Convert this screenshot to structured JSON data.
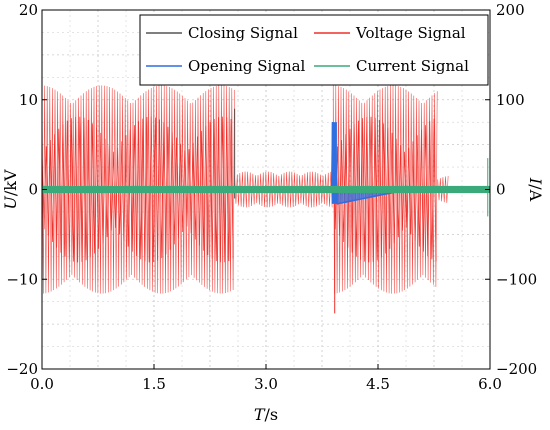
{
  "chart_data": {
    "type": "line",
    "title": "",
    "xlabel": {
      "symbol": "T",
      "unit": "/s"
    },
    "ylabel_left": {
      "symbol": "U",
      "unit": "/kV"
    },
    "ylabel_right": {
      "symbol": "I",
      "unit": "/A"
    },
    "xlim": [
      0,
      6
    ],
    "ylim_left": [
      -20,
      20
    ],
    "ylim_right": [
      -200,
      200
    ],
    "x_ticks": [
      "0.0",
      "1.5",
      "3.0",
      "4.5",
      "6.0"
    ],
    "y_left_ticks": [
      "-20",
      "-10",
      "0",
      "10",
      "20"
    ],
    "y_right_ticks": [
      "-200",
      "-100",
      "0",
      "100",
      "200"
    ],
    "grid": true,
    "legend_position": "top-right",
    "series": [
      {
        "name": "Closing Signal",
        "color": "#555555",
        "axis": "left",
        "segments": [
          {
            "x_start": 0.0,
            "x_end": 6.0,
            "level": 0
          }
        ],
        "spikes": [
          {
            "x": 2.58,
            "ymin": -1.0,
            "ymax": 9.0
          },
          {
            "x": 3.9,
            "ymin": -0.5,
            "ymax": 2.0
          }
        ]
      },
      {
        "name": "Voltage Signal",
        "color": "#f0302a",
        "axis": "left",
        "segments": [
          {
            "x_start": 0.0,
            "x_end": 2.58,
            "amplitude": 11.6
          },
          {
            "x_start": 2.58,
            "x_end": 3.9,
            "amplitude": 2.0
          },
          {
            "x_start": 3.9,
            "x_end": 5.3,
            "amplitude": 11.6
          },
          {
            "x_start": 5.3,
            "x_end": 5.45,
            "amplitude": 1.5
          }
        ],
        "spikes": [
          {
            "x": 3.92,
            "ymin": -13.8,
            "ymax": 1.0
          }
        ]
      },
      {
        "name": "Opening Signal",
        "color": "#2f6fe0",
        "axis": "left",
        "segments": [
          {
            "x_start": 3.88,
            "x_end": 4.9,
            "peak": 7.5,
            "trough": -1.6
          }
        ]
      },
      {
        "name": "Current Signal",
        "color": "#3aaa7a",
        "axis": "right",
        "segments": [
          {
            "x_start": 0.0,
            "x_end": 6.0,
            "level": 0,
            "band": 4
          }
        ],
        "spikes": [
          {
            "x": 5.97,
            "ymin": -30,
            "ymax": 35
          }
        ]
      }
    ]
  }
}
